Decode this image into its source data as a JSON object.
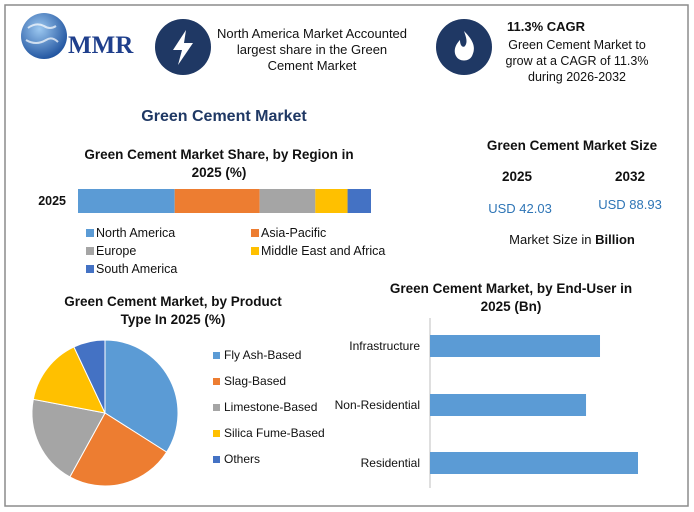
{
  "header": {
    "logo": "MMR",
    "highlight_1": "North America Market Accounted largest share in the Green Cement Market",
    "highlight_2": {
      "title": "11.3% CAGR",
      "text": "Green Cement Market to grow at a CAGR of 11.3% during 2026-2032"
    }
  },
  "title": "Green Cement Market",
  "market_size": {
    "title": "Green Cement Market Size",
    "years": [
      "2025",
      "2032"
    ],
    "values": [
      "USD 42.03",
      "USD 88.93"
    ],
    "note": "Market Size in",
    "unit": "Billion"
  },
  "chart_data": [
    {
      "type": "stacked-bar",
      "title": "Green Cement Market Share, by Region in 2025 (%)",
      "categories": [
        "2025"
      ],
      "series": [
        {
          "name": "North America",
          "color": "#5b9bd5",
          "values": [
            33
          ]
        },
        {
          "name": "Asia-Pacific",
          "color": "#ed7d31",
          "values": [
            29
          ]
        },
        {
          "name": "Europe",
          "color": "#a5a5a5",
          "values": [
            19
          ]
        },
        {
          "name": "Middle East and Africa",
          "color": "#ffc000",
          "values": [
            11
          ]
        },
        {
          "name": "South America",
          "color": "#4472c4",
          "values": [
            8
          ]
        }
      ]
    },
    {
      "type": "pie",
      "title": "Green Cement Market, by Product Type In 2025 (%)",
      "categories": [
        "Fly Ash-Based",
        "Slag-Based",
        "Limestone-Based",
        "Silica Fume-Based",
        "Others"
      ],
      "values": [
        34,
        24,
        20,
        15,
        7
      ],
      "colors": [
        "#5b9bd5",
        "#ed7d31",
        "#a5a5a5",
        "#ffc000",
        "#4472c4"
      ]
    },
    {
      "type": "hbar",
      "title": "Green Cement Market, by End-User in 2025 (Bn)",
      "categories": [
        "Infrastructure",
        "Non-Residential",
        "Residential"
      ],
      "values": [
        13.38,
        12.28,
        16.37
      ],
      "color": "#5b9bd5"
    }
  ]
}
